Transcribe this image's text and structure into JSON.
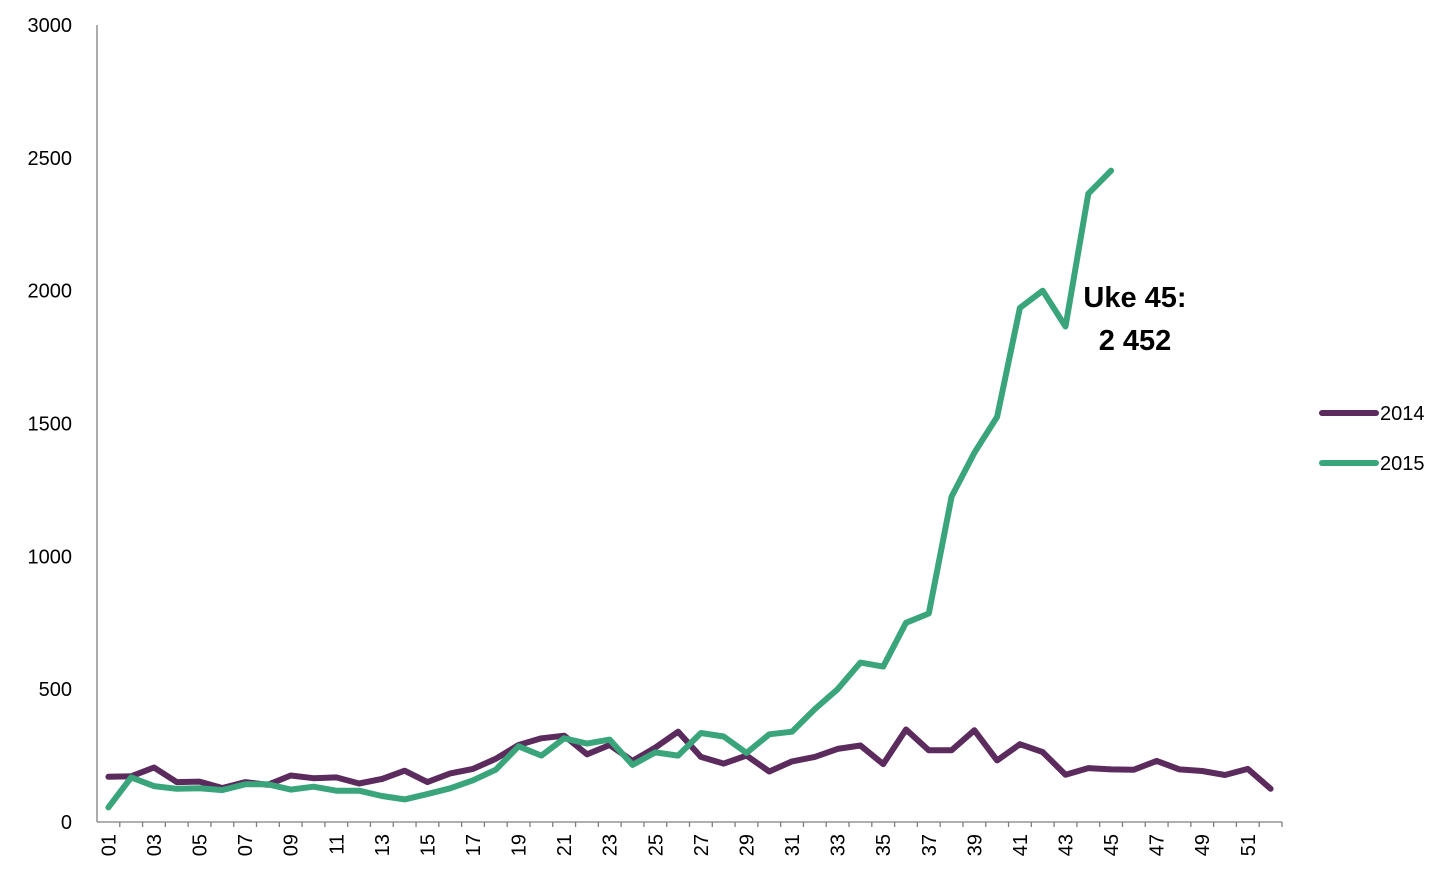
{
  "chart_data": {
    "type": "line",
    "categories": [
      "01",
      null,
      "03",
      null,
      "05",
      null,
      "07",
      null,
      "09",
      null,
      "11",
      null,
      "13",
      null,
      "15",
      null,
      "17",
      null,
      "19",
      null,
      "21",
      null,
      "23",
      null,
      "25",
      null,
      "27",
      null,
      "29",
      null,
      "31",
      null,
      "33",
      null,
      "35",
      null,
      "37",
      null,
      "39",
      null,
      "41",
      null,
      "43",
      null,
      "45",
      null,
      "47",
      null,
      "49",
      null,
      "51",
      null
    ],
    "series": [
      {
        "name": "2014",
        "color": "#5c2b5e",
        "values": [
          170,
          172,
          205,
          150,
          152,
          128,
          150,
          140,
          175,
          165,
          168,
          145,
          162,
          193,
          150,
          183,
          200,
          238,
          290,
          315,
          325,
          255,
          290,
          230,
          280,
          340,
          245,
          220,
          250,
          190,
          228,
          245,
          275,
          288,
          218,
          348,
          270,
          270,
          345,
          232,
          293,
          263,
          178,
          203,
          198,
          197,
          230,
          198,
          192,
          177,
          200,
          125
        ]
      },
      {
        "name": "2015",
        "color": "#3aa57a",
        "values": [
          55,
          168,
          135,
          125,
          127,
          120,
          142,
          142,
          122,
          133,
          118,
          118,
          98,
          85,
          105,
          127,
          157,
          197,
          285,
          250,
          315,
          295,
          310,
          215,
          262,
          250,
          335,
          322,
          260,
          330,
          340,
          425,
          500,
          600,
          585,
          750,
          785,
          1225,
          1390,
          1525,
          1935,
          2000,
          1865,
          2365,
          2452,
          null,
          null,
          null,
          null,
          null,
          null,
          null
        ]
      }
    ],
    "annotation": [
      "Uke 45:",
      "2 452"
    ],
    "ylim": [
      0,
      3000
    ],
    "yticks": [
      0,
      500,
      1000,
      1500,
      2000,
      2500,
      3000
    ],
    "grid": false,
    "legend": "right"
  }
}
